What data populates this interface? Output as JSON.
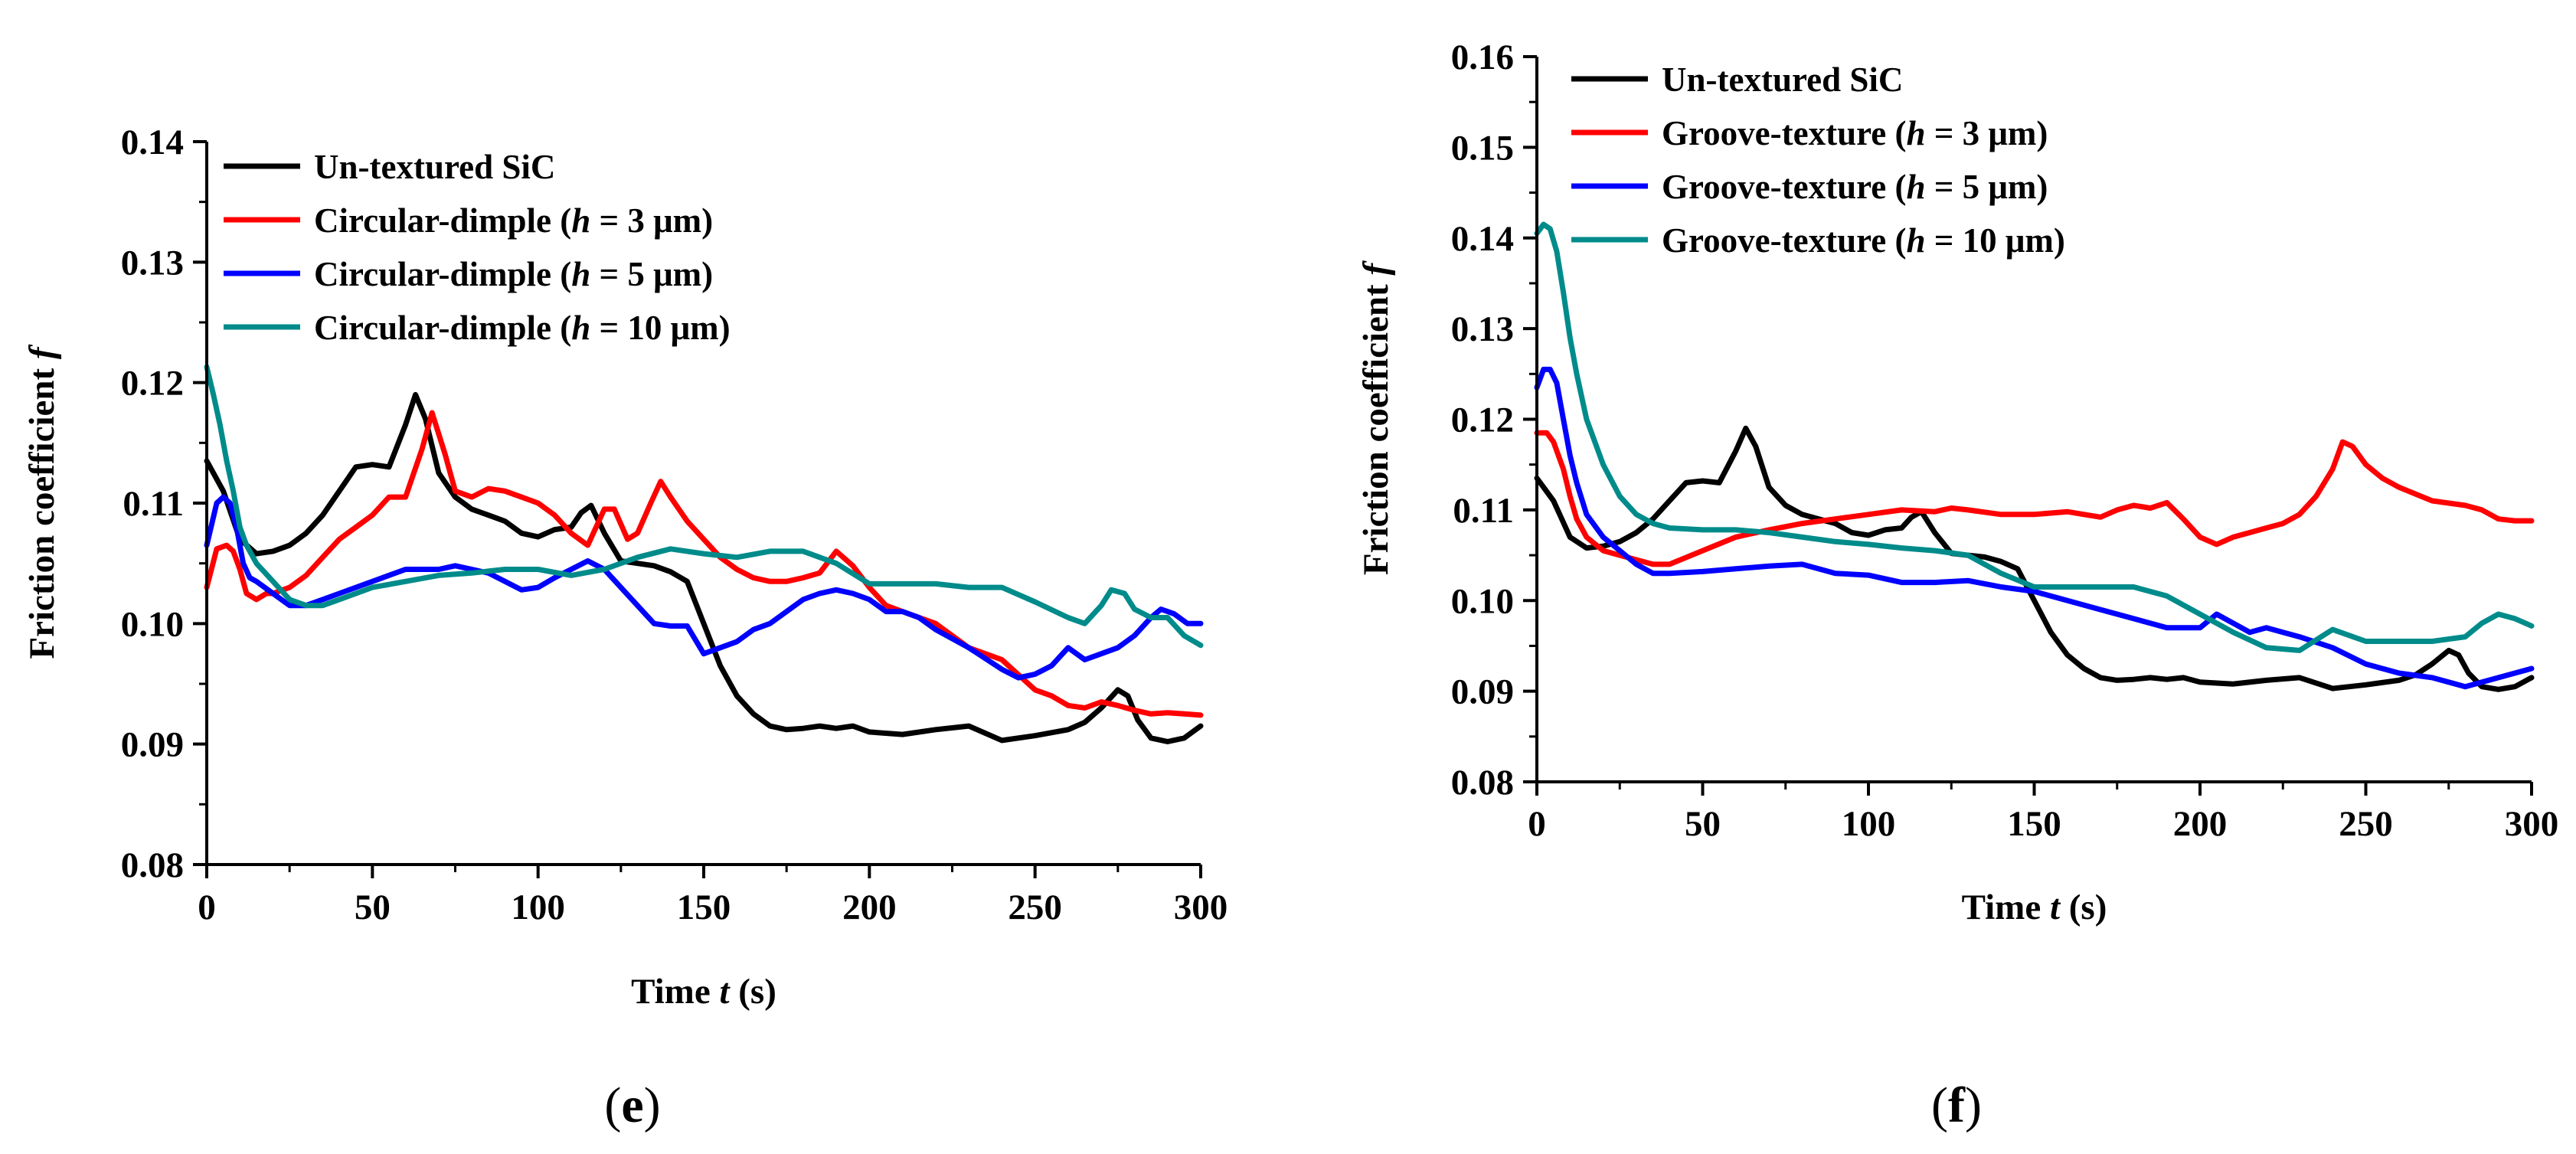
{
  "chart_data": [
    {
      "type": "line",
      "panel_label": "e",
      "xlabel_prefix": "Time ",
      "xlabel_var": "t",
      "xlabel_suffix": " (s)",
      "ylabel_prefix": "Friction coefficient ",
      "ylabel_var": "f",
      "xlim": [
        0,
        300
      ],
      "ylim": [
        0.08,
        0.14
      ],
      "xticks": [
        "0",
        "50",
        "100",
        "150",
        "200",
        "250",
        "300"
      ],
      "yticks": [
        "0.08",
        "0.09",
        "0.10",
        "0.11",
        "0.12",
        "0.13",
        "0.14"
      ],
      "legend_position": "top-left",
      "series": [
        {
          "name": "Un-textured SiC",
          "name_main": "Un-textured SiC",
          "name_var": "",
          "name_suffix": "",
          "color": "#000000",
          "x": [
            0,
            5,
            10,
            15,
            20,
            25,
            30,
            35,
            40,
            45,
            50,
            55,
            60,
            63,
            66,
            70,
            75,
            80,
            85,
            90,
            95,
            100,
            105,
            110,
            113,
            116,
            120,
            125,
            130,
            135,
            140,
            145,
            150,
            155,
            160,
            165,
            170,
            175,
            180,
            185,
            190,
            195,
            200,
            210,
            220,
            230,
            240,
            250,
            260,
            265,
            270,
            275,
            278,
            281,
            285,
            290,
            295,
            300
          ],
          "y": [
            0.1135,
            0.111,
            0.107,
            0.1058,
            0.106,
            0.1065,
            0.1075,
            0.109,
            0.111,
            0.113,
            0.1132,
            0.113,
            0.1165,
            0.119,
            0.117,
            0.1125,
            0.1105,
            0.1095,
            0.109,
            0.1085,
            0.1075,
            0.1072,
            0.1078,
            0.108,
            0.1092,
            0.1098,
            0.1075,
            0.1052,
            0.105,
            0.1048,
            0.1043,
            0.1035,
            0.1,
            0.0965,
            0.094,
            0.0925,
            0.0915,
            0.0912,
            0.0913,
            0.0915,
            0.0913,
            0.0915,
            0.091,
            0.0908,
            0.0912,
            0.0915,
            0.0903,
            0.0907,
            0.0912,
            0.0918,
            0.093,
            0.0945,
            0.094,
            0.092,
            0.0905,
            0.0902,
            0.0905,
            0.0915
          ]
        },
        {
          "name": "Circular-dimple (h = 3 μm)",
          "name_main": "Circular-dimple (",
          "name_var": "h",
          "name_suffix": " = 3 μm)",
          "color": "#ff0000",
          "x": [
            0,
            3,
            6,
            8,
            10,
            12,
            15,
            18,
            20,
            25,
            30,
            35,
            40,
            45,
            50,
            55,
            60,
            65,
            68,
            72,
            75,
            80,
            85,
            90,
            95,
            100,
            105,
            110,
            115,
            120,
            123,
            127,
            130,
            134,
            137,
            140,
            145,
            150,
            155,
            160,
            165,
            170,
            175,
            180,
            185,
            190,
            195,
            200,
            205,
            210,
            220,
            230,
            240,
            250,
            255,
            260,
            265,
            270,
            275,
            280,
            285,
            290,
            295,
            300
          ],
          "y": [
            0.103,
            0.1062,
            0.1065,
            0.106,
            0.1045,
            0.1025,
            0.102,
            0.1025,
            0.1025,
            0.103,
            0.104,
            0.1055,
            0.107,
            0.108,
            0.109,
            0.1105,
            0.1105,
            0.1145,
            0.1175,
            0.114,
            0.111,
            0.1105,
            0.1112,
            0.111,
            0.1105,
            0.11,
            0.109,
            0.1075,
            0.1065,
            0.1095,
            0.1095,
            0.107,
            0.1075,
            0.11,
            0.1118,
            0.1105,
            0.1085,
            0.107,
            0.1055,
            0.1045,
            0.1038,
            0.1035,
            0.1035,
            0.1038,
            0.1042,
            0.106,
            0.1048,
            0.103,
            0.1015,
            0.101,
            0.1,
            0.098,
            0.097,
            0.0945,
            0.094,
            0.0932,
            0.093,
            0.0935,
            0.0932,
            0.0928,
            0.0925,
            0.0926,
            0.0925,
            0.0924
          ]
        },
        {
          "name": "Circular-dimple (h = 5 μm)",
          "name_main": "Circular-dimple (",
          "name_var": "h",
          "name_suffix": " = 5 μm)",
          "color": "#0000ff",
          "x": [
            0,
            3,
            5,
            7,
            9,
            11,
            13,
            15,
            20,
            25,
            30,
            35,
            40,
            50,
            60,
            70,
            75,
            80,
            85,
            90,
            95,
            100,
            105,
            110,
            115,
            120,
            125,
            130,
            135,
            140,
            145,
            150,
            155,
            160,
            165,
            170,
            175,
            180,
            185,
            190,
            195,
            200,
            205,
            210,
            215,
            220,
            230,
            240,
            245,
            250,
            255,
            260,
            265,
            270,
            275,
            280,
            285,
            288,
            292,
            296,
            300
          ],
          "y": [
            0.1065,
            0.11,
            0.1105,
            0.11,
            0.108,
            0.105,
            0.1038,
            0.1035,
            0.1025,
            0.1015,
            0.1015,
            0.102,
            0.1025,
            0.1035,
            0.1045,
            0.1045,
            0.1048,
            0.1045,
            0.1042,
            0.1035,
            0.1028,
            0.103,
            0.1038,
            0.1045,
            0.1052,
            0.1045,
            0.103,
            0.1015,
            0.1,
            0.0998,
            0.0998,
            0.0975,
            0.098,
            0.0985,
            0.0995,
            0.1,
            0.101,
            0.102,
            0.1025,
            0.1028,
            0.1025,
            0.102,
            0.101,
            0.101,
            0.1005,
            0.0995,
            0.098,
            0.0962,
            0.0955,
            0.0958,
            0.0965,
            0.098,
            0.097,
            0.0975,
            0.098,
            0.099,
            0.1005,
            0.1012,
            0.1008,
            0.1,
            0.1
          ]
        },
        {
          "name": "Circular-dimple (h = 10 μm)",
          "name_main": "Circular-dimple (",
          "name_var": "h",
          "name_suffix": " = 10 μm)",
          "color": "#008b8b",
          "x": [
            0,
            2,
            4,
            6,
            8,
            10,
            12,
            15,
            20,
            25,
            30,
            35,
            40,
            50,
            60,
            70,
            80,
            90,
            100,
            110,
            120,
            130,
            140,
            150,
            160,
            170,
            180,
            190,
            200,
            210,
            220,
            230,
            240,
            250,
            260,
            265,
            270,
            273,
            277,
            280,
            285,
            290,
            295,
            300
          ],
          "y": [
            0.1213,
            0.119,
            0.1165,
            0.1135,
            0.111,
            0.108,
            0.1065,
            0.105,
            0.1035,
            0.102,
            0.1015,
            0.1015,
            0.102,
            0.103,
            0.1035,
            0.104,
            0.1042,
            0.1045,
            0.1045,
            0.104,
            0.1045,
            0.1055,
            0.1062,
            0.1058,
            0.1055,
            0.106,
            0.106,
            0.105,
            0.1033,
            0.1033,
            0.1033,
            0.103,
            0.103,
            0.1018,
            0.1005,
            0.1,
            0.1015,
            0.1028,
            0.1025,
            0.1012,
            0.1005,
            0.1005,
            0.099,
            0.0982
          ]
        }
      ]
    },
    {
      "type": "line",
      "panel_label": "f",
      "xlabel_prefix": "Time ",
      "xlabel_var": "t",
      "xlabel_suffix": " (s)",
      "ylabel_prefix": "Friction coefficient ",
      "ylabel_var": "f",
      "xlim": [
        0,
        300
      ],
      "ylim": [
        0.08,
        0.16
      ],
      "xticks": [
        "0",
        "50",
        "100",
        "150",
        "200",
        "250",
        "300"
      ],
      "yticks": [
        "0.08",
        "0.09",
        "0.10",
        "0.11",
        "0.12",
        "0.13",
        "0.14",
        "0.15",
        "0.16"
      ],
      "legend_position": "top-left",
      "series": [
        {
          "name": "Un-textured SiC",
          "name_main": "Un-textured SiC",
          "name_var": "",
          "name_suffix": "",
          "color": "#000000",
          "x": [
            0,
            5,
            10,
            15,
            20,
            25,
            30,
            35,
            40,
            45,
            50,
            55,
            60,
            63,
            66,
            70,
            75,
            80,
            85,
            90,
            95,
            100,
            105,
            110,
            113,
            116,
            120,
            125,
            130,
            135,
            140,
            145,
            150,
            155,
            160,
            165,
            170,
            175,
            180,
            185,
            190,
            195,
            200,
            210,
            220,
            230,
            240,
            250,
            260,
            265,
            270,
            275,
            278,
            281,
            285,
            290,
            295,
            300
          ],
          "y": [
            0.1135,
            0.111,
            0.107,
            0.1058,
            0.106,
            0.1065,
            0.1075,
            0.109,
            0.111,
            0.113,
            0.1132,
            0.113,
            0.1165,
            0.119,
            0.117,
            0.1125,
            0.1105,
            0.1095,
            0.109,
            0.1085,
            0.1075,
            0.1072,
            0.1078,
            0.108,
            0.1092,
            0.1098,
            0.1075,
            0.1052,
            0.105,
            0.1048,
            0.1043,
            0.1035,
            0.1,
            0.0965,
            0.094,
            0.0925,
            0.0915,
            0.0912,
            0.0913,
            0.0915,
            0.0913,
            0.0915,
            0.091,
            0.0908,
            0.0912,
            0.0915,
            0.0903,
            0.0907,
            0.0912,
            0.0918,
            0.093,
            0.0945,
            0.094,
            0.092,
            0.0905,
            0.0902,
            0.0905,
            0.0915
          ]
        },
        {
          "name": "Groove-texture (h = 3 μm)",
          "name_main": "Groove-texture (",
          "name_var": "h",
          "name_suffix": " = 3 μm)",
          "color": "#ff0000",
          "x": [
            0,
            3,
            5,
            8,
            10,
            12,
            15,
            20,
            25,
            30,
            35,
            40,
            50,
            60,
            70,
            80,
            90,
            100,
            110,
            120,
            125,
            130,
            140,
            150,
            160,
            165,
            170,
            175,
            180,
            185,
            190,
            195,
            200,
            205,
            210,
            215,
            220,
            225,
            230,
            235,
            240,
            243,
            246,
            250,
            255,
            260,
            270,
            280,
            285,
            290,
            295,
            300
          ],
          "y": [
            0.1185,
            0.1185,
            0.1175,
            0.1145,
            0.1115,
            0.109,
            0.107,
            0.1055,
            0.105,
            0.1045,
            0.104,
            0.104,
            0.1055,
            0.107,
            0.1078,
            0.1085,
            0.109,
            0.1095,
            0.11,
            0.1098,
            0.1102,
            0.11,
            0.1095,
            0.1095,
            0.1098,
            0.1095,
            0.1092,
            0.11,
            0.1105,
            0.1102,
            0.1108,
            0.109,
            0.107,
            0.1062,
            0.107,
            0.1075,
            0.108,
            0.1085,
            0.1095,
            0.1115,
            0.1145,
            0.1175,
            0.117,
            0.115,
            0.1135,
            0.1125,
            0.111,
            0.1105,
            0.11,
            0.109,
            0.1088,
            0.1088
          ]
        },
        {
          "name": "Groove-texture (h = 5 μm)",
          "name_main": "Groove-texture (",
          "name_var": "h",
          "name_suffix": " = 5 μm)",
          "color": "#0000ff",
          "x": [
            0,
            2,
            4,
            6,
            8,
            10,
            12,
            15,
            20,
            25,
            30,
            35,
            40,
            50,
            60,
            70,
            80,
            90,
            100,
            110,
            120,
            130,
            140,
            150,
            160,
            170,
            180,
            190,
            200,
            205,
            210,
            215,
            220,
            225,
            230,
            240,
            250,
            260,
            270,
            280,
            290,
            300
          ],
          "y": [
            0.1235,
            0.1255,
            0.1255,
            0.124,
            0.12,
            0.116,
            0.113,
            0.1095,
            0.107,
            0.1055,
            0.104,
            0.103,
            0.103,
            0.1032,
            0.1035,
            0.1038,
            0.104,
            0.103,
            0.1028,
            0.102,
            0.102,
            0.1022,
            0.1015,
            0.101,
            0.1,
            0.099,
            0.098,
            0.097,
            0.097,
            0.0985,
            0.0975,
            0.0965,
            0.097,
            0.0965,
            0.096,
            0.0948,
            0.093,
            0.092,
            0.0915,
            0.0905,
            0.0915,
            0.0925
          ]
        },
        {
          "name": "Groove-texture (h = 10 μm)",
          "name_main": "Groove-texture (",
          "name_var": "h",
          "name_suffix": " = 10 μm)",
          "color": "#008b8b",
          "x": [
            0,
            2,
            4,
            6,
            8,
            10,
            12,
            15,
            20,
            25,
            30,
            35,
            40,
            50,
            60,
            70,
            80,
            90,
            100,
            110,
            120,
            130,
            140,
            150,
            160,
            170,
            180,
            190,
            200,
            210,
            220,
            230,
            240,
            250,
            260,
            270,
            280,
            285,
            290,
            295,
            300
          ],
          "y": [
            0.1405,
            0.1415,
            0.141,
            0.1385,
            0.134,
            0.129,
            0.125,
            0.12,
            0.115,
            0.1115,
            0.1095,
            0.1085,
            0.108,
            0.1078,
            0.1078,
            0.1075,
            0.107,
            0.1065,
            0.1062,
            0.1058,
            0.1055,
            0.105,
            0.103,
            0.1015,
            0.1015,
            0.1015,
            0.1015,
            0.1005,
            0.0985,
            0.0965,
            0.0948,
            0.0945,
            0.0968,
            0.0955,
            0.0955,
            0.0955,
            0.096,
            0.0975,
            0.0985,
            0.098,
            0.0972
          ]
        }
      ]
    }
  ]
}
